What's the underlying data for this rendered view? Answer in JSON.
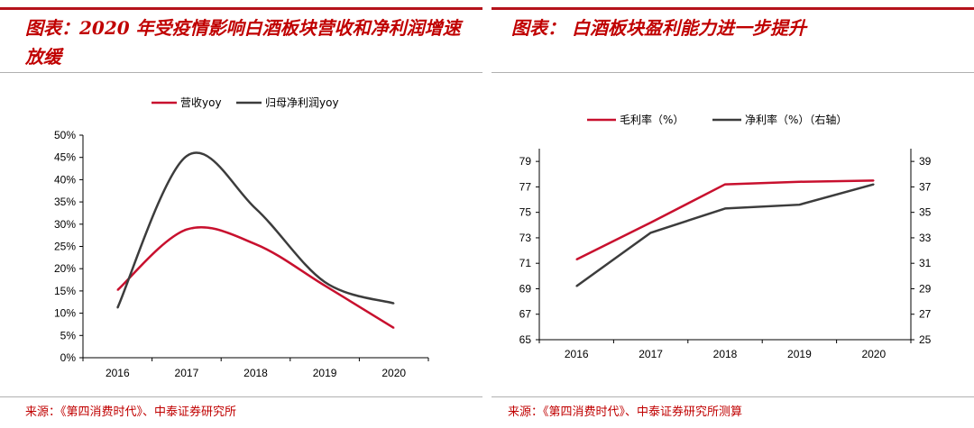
{
  "left": {
    "title": "图表：2020 年受疫情影响白酒板块营收和净利润增速放缓",
    "source": "来源：《第四消费时代》、中泰证券研究所"
  },
  "right": {
    "title": "图表： 白酒板块盈利能力进一步提升",
    "source": "来源：《第四消费时代》、中泰证券研究所测算"
  },
  "chart_data": [
    {
      "type": "line",
      "title": "",
      "xlabel": "",
      "ylabel": "",
      "categories": [
        "2016",
        "2017",
        "2018",
        "2019",
        "2020"
      ],
      "ylim": [
        0,
        50
      ],
      "y_ticks": [
        "0%",
        "5%",
        "10%",
        "15%",
        "20%",
        "25%",
        "30%",
        "35%",
        "40%",
        "45%",
        "50%"
      ],
      "legend_position": "top",
      "smooth": true,
      "series": [
        {
          "name": "营收yoy",
          "values": [
            15.2,
            28.8,
            25.5,
            16.2,
            6.7
          ],
          "color": "#c8102e"
        },
        {
          "name": "归母净利润yoy",
          "values": [
            11.2,
            45.3,
            33.5,
            17.0,
            12.2
          ],
          "color": "#3c3c3c"
        }
      ]
    },
    {
      "type": "line",
      "title": "",
      "xlabel": "",
      "ylabel": "",
      "categories": [
        "2016",
        "2017",
        "2018",
        "2019",
        "2020"
      ],
      "ylim": [
        65,
        80
      ],
      "y_ticks": [
        "65",
        "67",
        "69",
        "71",
        "73",
        "75",
        "77",
        "79"
      ],
      "y2lim": [
        25,
        40
      ],
      "y2_ticks": [
        "25",
        "27",
        "29",
        "31",
        "33",
        "35",
        "37",
        "39"
      ],
      "legend_position": "top",
      "series": [
        {
          "name": "毛利率（%）",
          "values": [
            71.3,
            74.2,
            77.2,
            77.4,
            77.5
          ],
          "color": "#c8102e",
          "axis": "left"
        },
        {
          "name": "净利率（%）（右轴）",
          "values": [
            29.2,
            33.4,
            35.3,
            35.6,
            37.2
          ],
          "color": "#3c3c3c",
          "axis": "right"
        }
      ]
    }
  ]
}
